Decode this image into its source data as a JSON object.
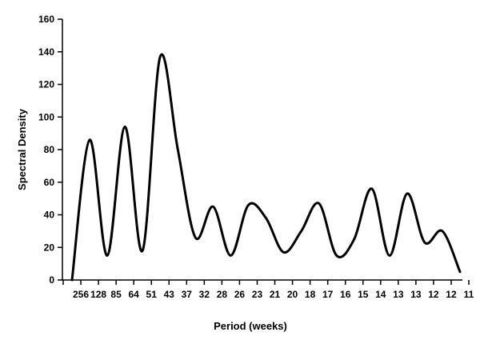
{
  "chart_data": {
    "type": "line",
    "title": "",
    "xlabel": "Period (weeks)",
    "ylabel": "Spectral Density",
    "ylim": [
      0,
      160
    ],
    "yticks": [
      0,
      20,
      40,
      60,
      80,
      100,
      120,
      140,
      160
    ],
    "categories": [
      "256",
      "128",
      "85",
      "64",
      "51",
      "43",
      "37",
      "32",
      "28",
      "26",
      "23",
      "21",
      "20",
      "18",
      "17",
      "16",
      "15",
      "14",
      "13",
      "13",
      "12",
      "12",
      "11"
    ],
    "grid": false,
    "legend": "none",
    "series": [
      {
        "values": [
          0,
          86,
          15,
          94,
          18,
          137,
          80,
          26,
          45,
          15,
          46,
          38,
          17,
          30,
          47,
          15,
          25,
          56,
          15,
          53,
          23,
          30,
          5
        ]
      }
    ]
  }
}
